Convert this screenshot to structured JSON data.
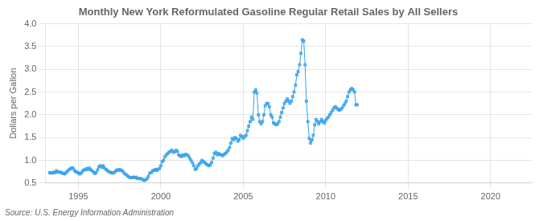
{
  "chart_data": {
    "type": "line",
    "title": "Monthly New York Reformulated Gasoline Regular Retail Sales by All Sellers",
    "ylabel": "Dollars per Gallon",
    "annotations": [
      "Source: U.S. Energy Information Administration"
    ],
    "xlim": [
      1993.0,
      2022.5
    ],
    "xticks": [
      1995,
      2000,
      2005,
      2010,
      2015,
      2020
    ],
    "ylim": [
      0.5,
      4.0
    ],
    "yticks": [
      0.5,
      {
        "value": 1.0,
        "label": "1.0"
      },
      1.5,
      {
        "value": 2.0,
        "label": "2.0"
      },
      2.5,
      {
        "value": 3.0,
        "label": "3.0"
      },
      3.5,
      {
        "value": 4.0,
        "label": "4.0"
      }
    ],
    "grid": true,
    "marker": "square",
    "line_style": "solid",
    "x": [
      1993.25,
      1993.33,
      1993.42,
      1993.5,
      1993.58,
      1993.67,
      1993.75,
      1993.83,
      1993.92,
      1994.0,
      1994.08,
      1994.17,
      1994.25,
      1994.33,
      1994.42,
      1994.5,
      1994.58,
      1994.67,
      1994.75,
      1994.83,
      1994.92,
      1995.0,
      1995.08,
      1995.17,
      1995.25,
      1995.33,
      1995.42,
      1995.5,
      1995.58,
      1995.67,
      1995.75,
      1995.83,
      1995.92,
      1996.0,
      1996.08,
      1996.17,
      1996.25,
      1996.33,
      1996.42,
      1996.5,
      1996.58,
      1996.67,
      1996.75,
      1996.83,
      1996.92,
      1997.0,
      1997.08,
      1997.17,
      1997.25,
      1997.33,
      1997.42,
      1997.5,
      1997.58,
      1997.67,
      1997.75,
      1997.83,
      1997.92,
      1998.0,
      1998.08,
      1998.17,
      1998.25,
      1998.33,
      1998.42,
      1998.5,
      1998.58,
      1998.67,
      1998.75,
      1998.83,
      1998.92,
      1999.0,
      1999.08,
      1999.17,
      1999.25,
      1999.33,
      1999.42,
      1999.5,
      1999.58,
      1999.67,
      1999.75,
      1999.83,
      1999.92,
      2000.0,
      2000.08,
      2000.17,
      2000.25,
      2000.33,
      2000.42,
      2000.5,
      2000.58,
      2000.67,
      2000.75,
      2000.83,
      2000.92,
      2001.0,
      2001.08,
      2001.17,
      2001.25,
      2001.33,
      2001.42,
      2001.5,
      2001.58,
      2001.67,
      2001.75,
      2001.83,
      2001.92,
      2002.0,
      2002.08,
      2002.17,
      2002.25,
      2002.33,
      2002.42,
      2002.5,
      2002.58,
      2002.67,
      2002.75,
      2002.83,
      2002.92,
      2003.0,
      2003.08,
      2003.17,
      2003.25,
      2003.33,
      2003.42,
      2003.5,
      2003.58,
      2003.67,
      2003.75,
      2003.83,
      2003.92,
      2004.0,
      2004.08,
      2004.17,
      2004.25,
      2004.33,
      2004.42,
      2004.5,
      2004.58,
      2004.67,
      2004.75,
      2004.83,
      2004.92,
      2005.0,
      2005.08,
      2005.17,
      2005.25,
      2005.33,
      2005.42,
      2005.5,
      2005.58,
      2005.67,
      2005.75,
      2005.83,
      2005.92,
      2006.0,
      2006.08,
      2006.17,
      2006.25,
      2006.33,
      2006.42,
      2006.5,
      2006.58,
      2006.67,
      2006.75,
      2006.83,
      2006.92,
      2007.0,
      2007.08,
      2007.17,
      2007.25,
      2007.33,
      2007.42,
      2007.5,
      2007.58,
      2007.67,
      2007.75,
      2007.83,
      2007.92,
      2008.0,
      2008.08,
      2008.17,
      2008.25,
      2008.33,
      2008.42,
      2008.5,
      2008.58,
      2008.67,
      2008.75,
      2008.83,
      2008.92,
      2009.0,
      2009.08,
      2009.17,
      2009.25,
      2009.33,
      2009.42,
      2009.5,
      2009.58,
      2009.67,
      2009.75,
      2009.83,
      2009.92,
      2010.0,
      2010.08,
      2010.17,
      2010.25,
      2010.33,
      2010.42,
      2010.5,
      2010.58,
      2010.67,
      2010.75,
      2010.83,
      2010.92,
      2011.0,
      2011.08,
      2011.17,
      2011.25,
      2011.33,
      2011.42,
      2011.5,
      2011.58,
      2011.67,
      2011.75,
      2011.83,
      2011.92
    ],
    "values": [
      0.73,
      0.72,
      0.72,
      0.74,
      0.73,
      0.77,
      0.74,
      0.74,
      0.74,
      0.72,
      0.71,
      0.7,
      0.73,
      0.76,
      0.79,
      0.81,
      0.83,
      0.83,
      0.78,
      0.75,
      0.74,
      0.72,
      0.7,
      0.72,
      0.76,
      0.79,
      0.79,
      0.82,
      0.8,
      0.83,
      0.79,
      0.77,
      0.74,
      0.71,
      0.73,
      0.79,
      0.86,
      0.88,
      0.85,
      0.88,
      0.83,
      0.8,
      0.78,
      0.75,
      0.74,
      0.73,
      0.72,
      0.73,
      0.76,
      0.79,
      0.78,
      0.8,
      0.78,
      0.77,
      0.73,
      0.7,
      0.68,
      0.65,
      0.63,
      0.62,
      0.62,
      0.63,
      0.62,
      0.63,
      0.6,
      0.6,
      0.6,
      0.59,
      0.57,
      0.56,
      0.57,
      0.6,
      0.65,
      0.72,
      0.73,
      0.77,
      0.78,
      0.8,
      0.78,
      0.8,
      0.82,
      0.88,
      0.97,
      1.0,
      1.08,
      1.12,
      1.15,
      1.18,
      1.2,
      1.22,
      1.18,
      1.18,
      1.22,
      1.2,
      1.12,
      1.1,
      1.08,
      1.12,
      1.1,
      1.13,
      1.12,
      1.1,
      1.05,
      1.0,
      0.95,
      0.88,
      0.8,
      0.82,
      0.88,
      0.92,
      0.95,
      1.0,
      0.97,
      0.95,
      0.92,
      0.9,
      0.88,
      0.9,
      0.95,
      1.05,
      1.15,
      1.18,
      1.12,
      1.15,
      1.13,
      1.12,
      1.1,
      1.13,
      1.15,
      1.18,
      1.22,
      1.28,
      1.38,
      1.48,
      1.45,
      1.5,
      1.48,
      1.42,
      1.45,
      1.55,
      1.52,
      1.48,
      1.52,
      1.55,
      1.65,
      1.75,
      1.85,
      1.95,
      1.9,
      2.5,
      2.55,
      2.48,
      2.0,
      1.85,
      1.8,
      1.85,
      2.0,
      2.2,
      2.25,
      2.25,
      2.18,
      2.0,
      1.95,
      1.82,
      1.8,
      1.78,
      1.8,
      1.85,
      1.95,
      2.05,
      2.15,
      2.25,
      2.3,
      2.35,
      2.3,
      2.25,
      2.3,
      2.4,
      2.5,
      2.65,
      2.88,
      2.95,
      3.1,
      3.35,
      3.65,
      3.62,
      3.1,
      2.3,
      1.85,
      1.48,
      1.38,
      1.45,
      1.55,
      1.78,
      1.9,
      1.85,
      1.8,
      1.85,
      1.9,
      1.85,
      1.82,
      1.88,
      1.92,
      1.95,
      2.0,
      2.05,
      2.1,
      2.15,
      2.18,
      2.15,
      2.12,
      2.1,
      2.12,
      2.15,
      2.2,
      2.25,
      2.3,
      2.4,
      2.5,
      2.55,
      2.58,
      2.55,
      2.5,
      2.22,
      2.22
    ]
  }
}
